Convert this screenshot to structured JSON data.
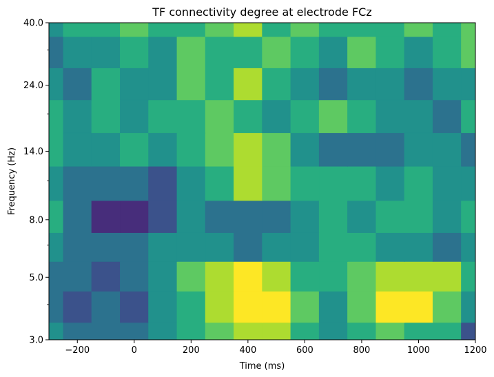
{
  "chart_data": {
    "type": "heatmap",
    "title": "TF connectivity degree at electrode FCz",
    "xlabel": "Time (ms)",
    "ylabel": "Frequency (Hz)",
    "xlim": [
      -300,
      1200
    ],
    "ylim": [
      3.0,
      40.0
    ],
    "yscale": "log",
    "x_ticks": [
      -200,
      0,
      200,
      400,
      600,
      800,
      1000,
      1200
    ],
    "x_tick_labels": [
      "−200",
      "0",
      "200",
      "400",
      "600",
      "800",
      "1000",
      "1200"
    ],
    "y_ticks": [
      3.0,
      5.0,
      8.0,
      14.0,
      24.0,
      40.0
    ],
    "y_tick_labels": [
      "3.0",
      "5.0",
      "8.0",
      "14.0",
      "24.0",
      "40.0"
    ],
    "y_minor_ticks": [
      4.0,
      6.5,
      11.0,
      19.0,
      32.0
    ],
    "colormap": [
      "#440154",
      "#472d7b",
      "#3b528b",
      "#2c728e",
      "#21918c",
      "#28ae80",
      "#5ec962",
      "#addc30",
      "#fde725"
    ],
    "grid": false,
    "legend": "none",
    "times_ms": [
      -300,
      -200,
      -100,
      0,
      100,
      200,
      300,
      400,
      500,
      600,
      700,
      800,
      900,
      1000,
      1100,
      1200
    ],
    "frequencies_hz": [
      3.0,
      4.0,
      5.0,
      6.5,
      8.0,
      11.0,
      14.0,
      19.0,
      24.0,
      32.0,
      40.0
    ],
    "values": [
      [
        4,
        3,
        3,
        3,
        4,
        5,
        6,
        7,
        7,
        5,
        4,
        5,
        6,
        5,
        5,
        2
      ],
      [
        3,
        2,
        3,
        2,
        4,
        5,
        7,
        8,
        8,
        6,
        4,
        6,
        8,
        8,
        6,
        4
      ],
      [
        3,
        3,
        2,
        3,
        4,
        6,
        7,
        8,
        7,
        5,
        5,
        6,
        7,
        7,
        7,
        5
      ],
      [
        4,
        3,
        3,
        3,
        4,
        4,
        4,
        3,
        4,
        4,
        5,
        5,
        4,
        4,
        3,
        4
      ],
      [
        5,
        3,
        1,
        1,
        2,
        4,
        3,
        3,
        3,
        4,
        5,
        4,
        5,
        5,
        4,
        5
      ],
      [
        4,
        3,
        3,
        3,
        2,
        4,
        5,
        7,
        6,
        5,
        5,
        5,
        4,
        5,
        4,
        4
      ],
      [
        5,
        4,
        4,
        5,
        4,
        5,
        6,
        7,
        6,
        4,
        3,
        3,
        3,
        4,
        4,
        3
      ],
      [
        5,
        4,
        5,
        4,
        5,
        5,
        6,
        5,
        4,
        5,
        6,
        5,
        4,
        4,
        3,
        5
      ],
      [
        4,
        3,
        5,
        4,
        4,
        6,
        5,
        7,
        5,
        4,
        3,
        4,
        4,
        3,
        4,
        4
      ],
      [
        3,
        4,
        4,
        5,
        4,
        6,
        5,
        5,
        6,
        5,
        4,
        6,
        5,
        4,
        5,
        6
      ],
      [
        4,
        5,
        5,
        6,
        5,
        5,
        6,
        7,
        5,
        6,
        5,
        5,
        5,
        6,
        5,
        6
      ]
    ]
  }
}
